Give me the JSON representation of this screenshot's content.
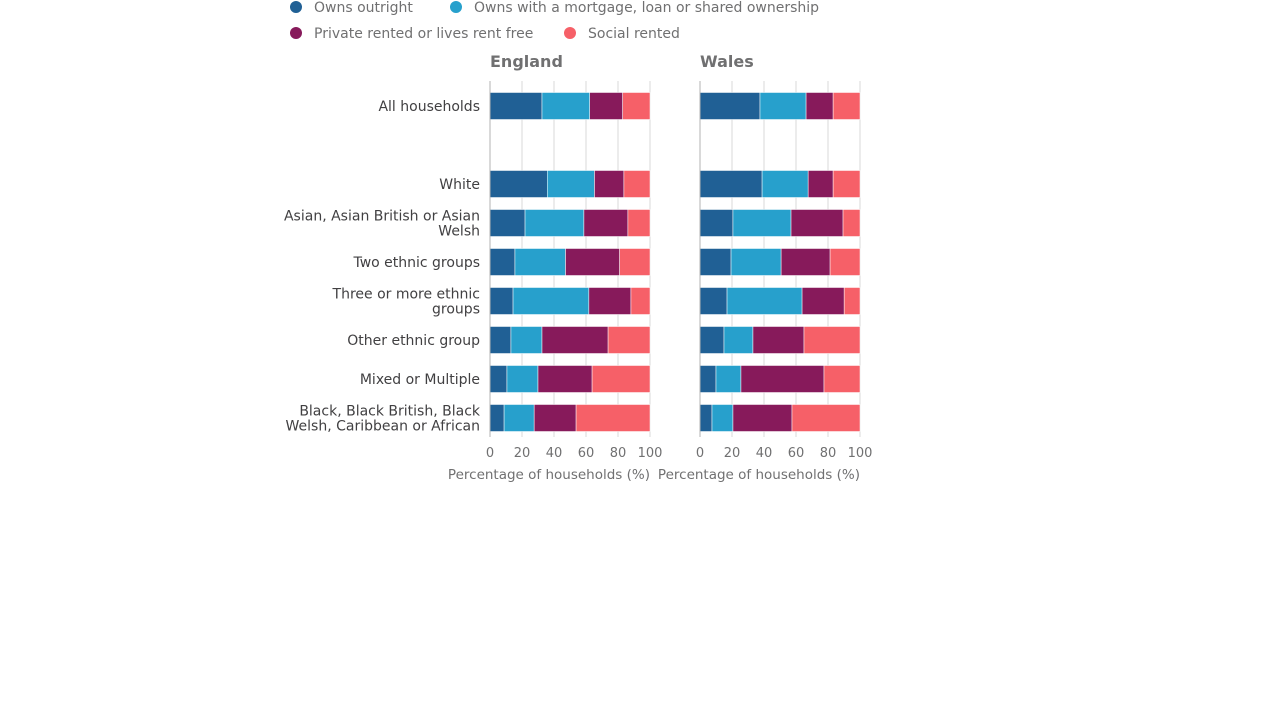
{
  "chart_data": {
    "type": "bar",
    "orientation": "horizontal",
    "stacked": true,
    "categories": [
      "All households",
      "White",
      "Asian, Asian British or Asian Welsh",
      "Two ethnic groups",
      "Three or more ethnic groups",
      "Other ethnic group",
      "Mixed or Multiple",
      "Black, Black British, Black Welsh, Caribbean or African"
    ],
    "category_lines": [
      [
        "All households"
      ],
      [
        "White"
      ],
      [
        "Asian, Asian British or Asian",
        "Welsh"
      ],
      [
        "Two ethnic groups"
      ],
      [
        "Three or more ethnic",
        "groups"
      ],
      [
        "Other ethnic group"
      ],
      [
        "Mixed or Multiple"
      ],
      [
        "Black, Black British, Black",
        "Welsh, Caribbean or African"
      ]
    ],
    "legend": [
      {
        "name": "Owns outright",
        "color": "#206095"
      },
      {
        "name": "Owns with a mortgage, loan or shared ownership",
        "color": "#27a0cc"
      },
      {
        "name": "Private rented or lives rent free",
        "color": "#871a5b"
      },
      {
        "name": "Social rented",
        "color": "#f66068"
      }
    ],
    "legend_placement": "top",
    "panels": [
      {
        "title": "England",
        "xlabel": "Percentage of households (%)",
        "xlim": [
          0,
          100
        ],
        "ticks": [
          "0",
          "20",
          "40",
          "60",
          "80",
          "100"
        ],
        "grid": true,
        "series": [
          {
            "name": "Owns outright",
            "values": [
              32.5,
              35.8,
              21.9,
              15.6,
              14.4,
              13.1,
              10.6,
              8.8
            ]
          },
          {
            "name": "Owns with a mortgage, loan or shared ownership",
            "values": [
              29.8,
              29.5,
              36.8,
              31.6,
              47.4,
              19.4,
              19.4,
              18.8
            ]
          },
          {
            "name": "Private rented or lives rent free",
            "values": [
              20.6,
              18.4,
              27.5,
              33.8,
              26.3,
              41.3,
              33.8,
              26.2
            ]
          },
          {
            "name": "Social rented",
            "values": [
              17.1,
              16.3,
              13.8,
              19.0,
              11.9,
              26.2,
              36.2,
              46.2
            ]
          }
        ]
      },
      {
        "title": "Wales",
        "xlabel": "Percentage of households (%)",
        "xlim": [
          0,
          100
        ],
        "ticks": [
          "0",
          "20",
          "40",
          "60",
          "80",
          "100"
        ],
        "grid": true,
        "series": [
          {
            "name": "Owns outright",
            "values": [
              37.5,
              38.8,
              20.6,
              19.4,
              16.9,
              15.0,
              10.0,
              7.5
            ]
          },
          {
            "name": "Owns with a mortgage, loan or shared ownership",
            "values": [
              28.8,
              28.8,
              36.3,
              31.3,
              46.9,
              18.1,
              15.6,
              13.1
            ]
          },
          {
            "name": "Private rented or lives rent free",
            "values": [
              16.9,
              15.6,
              32.5,
              30.6,
              26.3,
              31.9,
              51.9,
              36.9
            ]
          },
          {
            "name": "Social rented",
            "values": [
              16.8,
              16.8,
              10.6,
              18.7,
              9.9,
              35.0,
              22.5,
              42.5
            ]
          }
        ]
      }
    ]
  }
}
